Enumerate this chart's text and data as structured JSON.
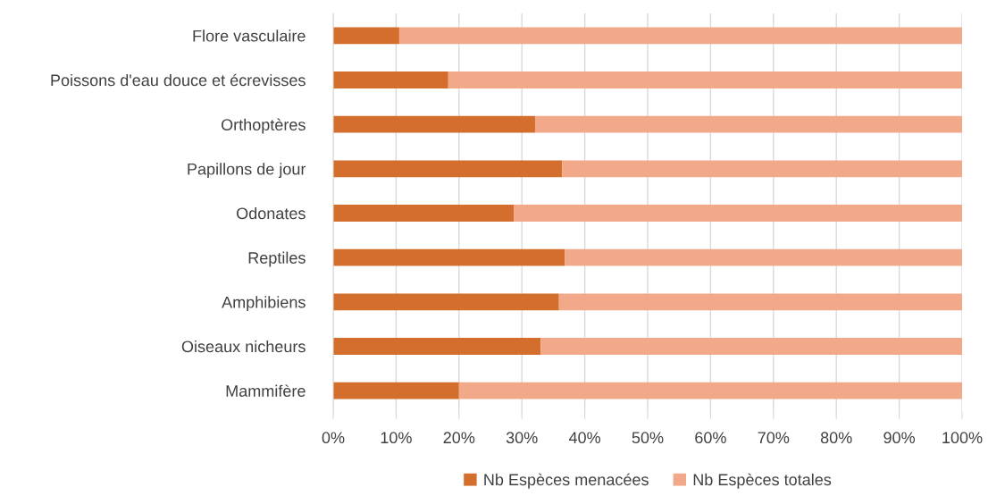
{
  "chart_data": {
    "type": "bar",
    "orientation": "horizontal",
    "stacked": true,
    "categories": [
      "Flore vasculaire",
      "Poissons d'eau douce et écrevisses",
      "Orthoptères",
      "Papillons de jour",
      "Odonates",
      "Reptiles",
      "Amphibiens",
      "Oiseaux nicheurs",
      "Mammifère"
    ],
    "series": [
      {
        "name": "Nb Espèces menacées",
        "color": "#d46e2c",
        "values": [
          10.5,
          18.3,
          32.1,
          36.4,
          28.7,
          36.8,
          35.9,
          33.0,
          20.0
        ]
      },
      {
        "name": "Nb Espèces totales",
        "color": "#f2a98a",
        "values": [
          89.5,
          81.7,
          67.9,
          63.6,
          71.3,
          63.2,
          64.1,
          67.0,
          80.0
        ]
      }
    ],
    "xlim": [
      0,
      100
    ],
    "xticks": [
      {
        "value": 0,
        "label": "0%"
      },
      {
        "value": 10,
        "label": "10%"
      },
      {
        "value": 20,
        "label": "20%"
      },
      {
        "value": 30,
        "label": "30%"
      },
      {
        "value": 40,
        "label": "40%"
      },
      {
        "value": 50,
        "label": "50%"
      },
      {
        "value": 60,
        "label": "60%"
      },
      {
        "value": 70,
        "label": "70%"
      },
      {
        "value": 80,
        "label": "80%"
      },
      {
        "value": 90,
        "label": "90%"
      },
      {
        "value": 100,
        "label": "100%"
      }
    ],
    "grid": "x",
    "legend": "bottom"
  }
}
